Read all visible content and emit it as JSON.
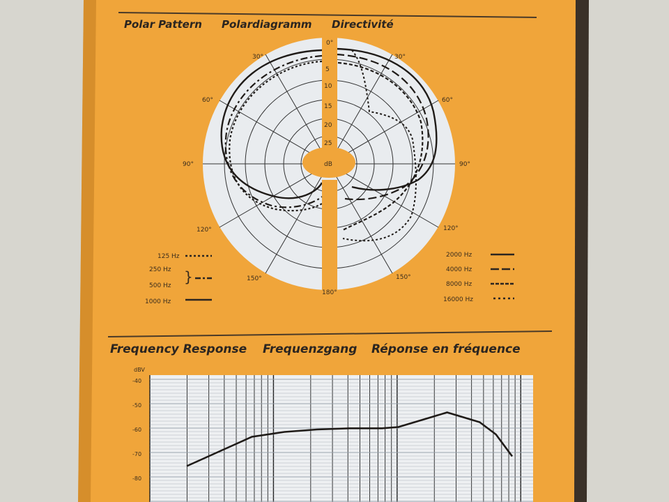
{
  "colors": {
    "background": "#d7d6cf",
    "box_orange": "#f0a53a",
    "panel": "#e9ecef",
    "ink": "#2b2520"
  },
  "polar": {
    "heading_en": "Polar Pattern",
    "heading_de": "Polardiagramm",
    "heading_fr": "Directivité",
    "angles": {
      "a0": "0°",
      "a30l": "30°",
      "a30r": "30°",
      "a60l": "60°",
      "a60r": "60°",
      "a90l": "90°",
      "a90r": "90°",
      "a120l": "120°",
      "a120r": "120°",
      "a150l": "150°",
      "a150r": "150°",
      "a180": "180°"
    },
    "db_ticks": [
      "5",
      "10",
      "15",
      "20",
      "25"
    ],
    "db_unit": "dB",
    "legend_left": [
      {
        "label": "125 Hz",
        "style": "dotted"
      },
      {
        "label": "250 Hz",
        "style": "dash-dot"
      },
      {
        "label": "500 Hz",
        "style": "dash-dot"
      },
      {
        "label": "1000 Hz",
        "style": "solid"
      }
    ],
    "legend_right": [
      {
        "label": "2000 Hz",
        "style": "solid"
      },
      {
        "label": "4000 Hz",
        "style": "long-dash"
      },
      {
        "label": "8000 Hz",
        "style": "short-dash"
      },
      {
        "label": "16000 Hz",
        "style": "dotted"
      }
    ]
  },
  "freq": {
    "heading_en": "Frequency Response",
    "heading_de": "Frequenzgang",
    "heading_fr": "Réponse en fréquence",
    "y_unit": "dBV",
    "y_ticks": [
      "-40",
      "-50",
      "-60",
      "-70",
      "-80"
    ]
  },
  "chart_data": {
    "type": "line",
    "title": "Frequency Response",
    "ylabel": "dBV",
    "y_ticks": [
      -40,
      -50,
      -60,
      -70,
      -80
    ],
    "ylim": [
      -85,
      -40
    ],
    "series": [
      {
        "x_relative": [
          0.0,
          0.05,
          0.1,
          0.15,
          0.2,
          0.3,
          0.4,
          0.5,
          0.6,
          0.65,
          0.7,
          0.75,
          0.8,
          0.85,
          0.9,
          0.95,
          1.0
        ],
        "values": [
          -75,
          -72,
          -69,
          -66,
          -63,
          -61,
          -60,
          -59.5,
          -59.5,
          -59,
          -57,
          -55,
          -53,
          -55,
          -57,
          -62,
          -71
        ]
      }
    ]
  }
}
